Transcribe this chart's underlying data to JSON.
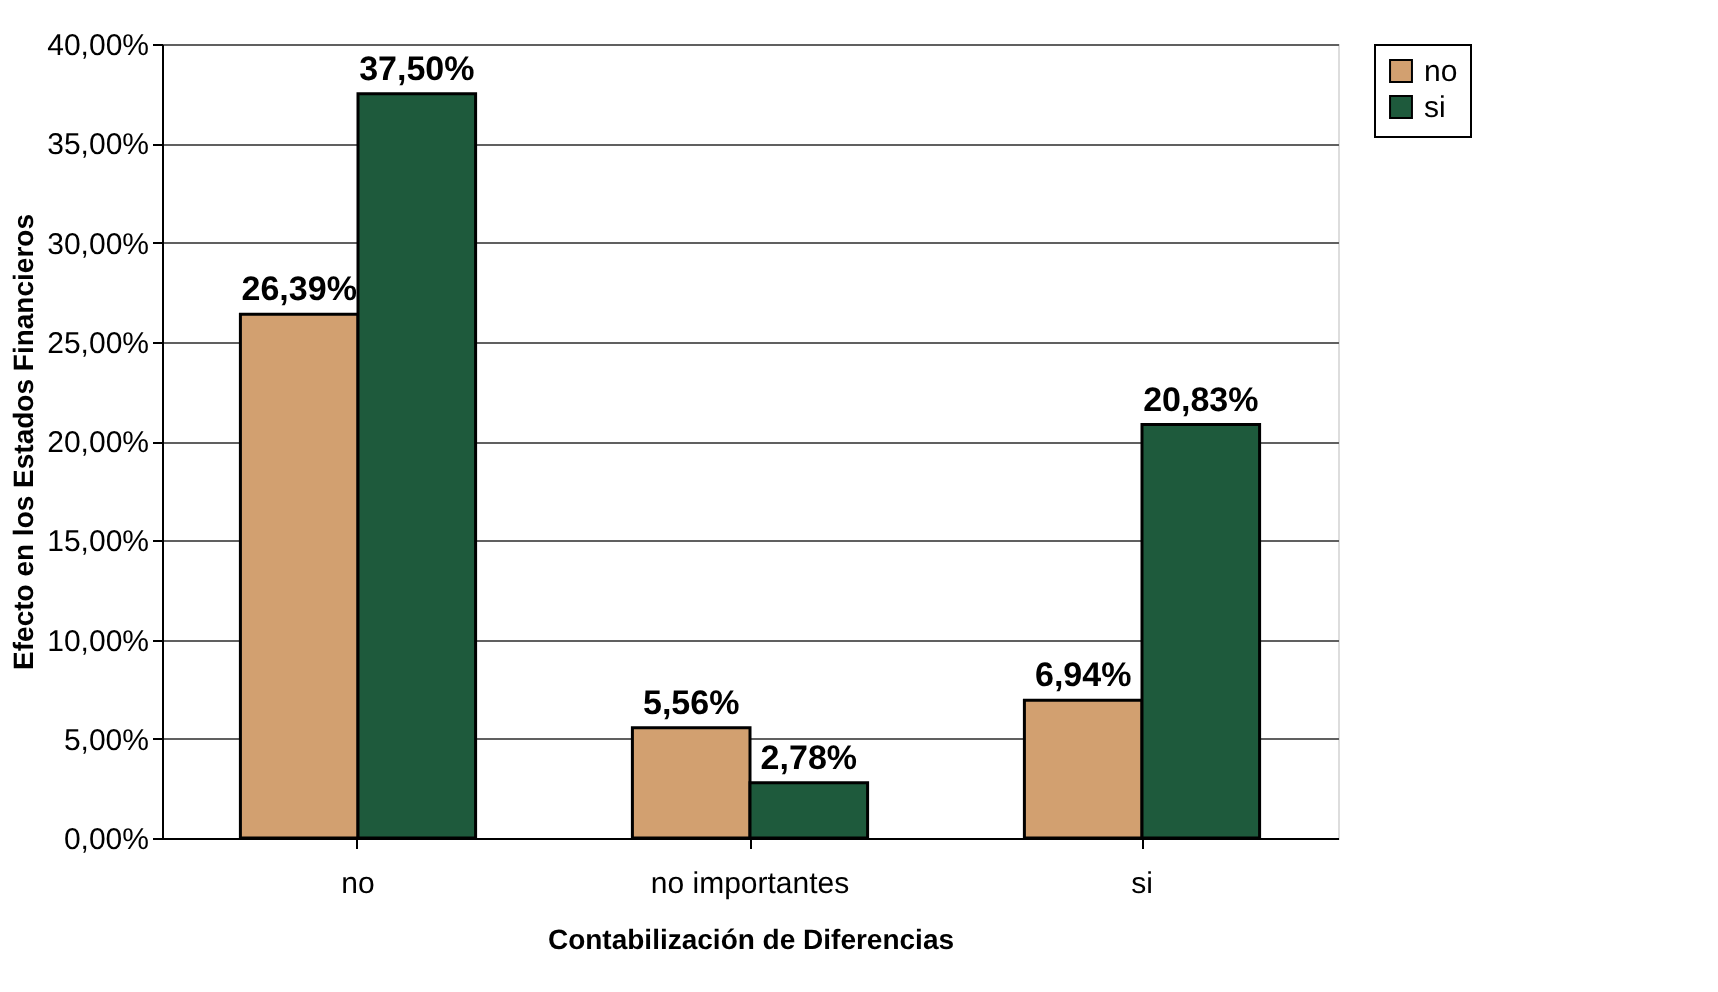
{
  "chart_data": {
    "type": "bar",
    "xlabel": "Contabilización de Diferencias",
    "ylabel": "Efecto en los Estados Financieros",
    "categories": [
      "no",
      "no importantes",
      "si"
    ],
    "series": [
      {
        "name": "no",
        "color": "#d2a070",
        "values": [
          26.39,
          5.56,
          6.94
        ],
        "value_labels": [
          "26,39%",
          "5,56%",
          "6,94%"
        ]
      },
      {
        "name": "si",
        "color": "#1e5a3c",
        "values": [
          37.5,
          2.78,
          20.83
        ],
        "value_labels": [
          "37,50%",
          "2,78%",
          "20,83%"
        ]
      }
    ],
    "ylim": [
      0,
      40
    ],
    "yticks": [
      {
        "value": 0,
        "label": "0,00%"
      },
      {
        "value": 5,
        "label": "5,00%"
      },
      {
        "value": 10,
        "label": "10,00%"
      },
      {
        "value": 15,
        "label": "15,00%"
      },
      {
        "value": 20,
        "label": "20,00%"
      },
      {
        "value": 25,
        "label": "25,00%"
      },
      {
        "value": 30,
        "label": "30,00%"
      },
      {
        "value": 35,
        "label": "35,00%"
      },
      {
        "value": 40,
        "label": "40,00%"
      }
    ],
    "grid": "y",
    "legend": "right"
  }
}
